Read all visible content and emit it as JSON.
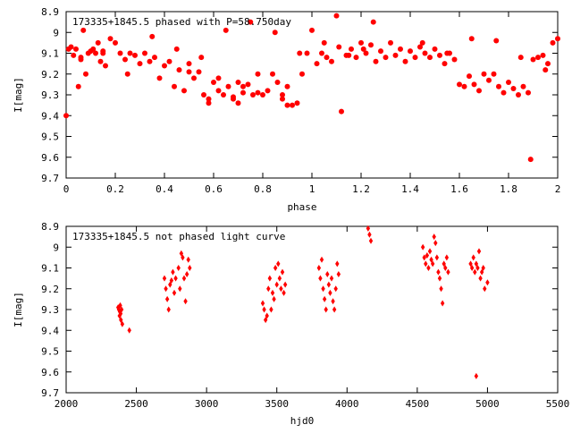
{
  "chart_data": [
    {
      "type": "scatter",
      "title": "173335+1845.5 phased with P=58.750day",
      "xlabel": "phase",
      "ylabel": "I[mag]",
      "xlim": [
        0,
        2
      ],
      "ylim": [
        8.9,
        9.7
      ],
      "y_inverted": true,
      "xticks": [
        "0",
        "0.2",
        "0.4",
        "0.6",
        "0.8",
        "1",
        "1.2",
        "1.4",
        "1.6",
        "1.8",
        "2"
      ],
      "yticks": [
        "8.9",
        "9",
        "9.1",
        "9.2",
        "9.3",
        "9.4",
        "9.5",
        "9.6",
        "9.7"
      ],
      "marker_color": "#ff0000",
      "series": [
        {
          "x": [
            0.0,
            0.01,
            0.02,
            0.03,
            0.04,
            0.05,
            0.06,
            0.07,
            0.08,
            0.09,
            0.1,
            0.11,
            0.12,
            0.13,
            0.14,
            0.15,
            0.16,
            0.18,
            0.2,
            0.22,
            0.24,
            0.26,
            0.28,
            0.3,
            0.32,
            0.34,
            0.36,
            0.38,
            0.4,
            0.42,
            0.44,
            0.46,
            0.48,
            0.5,
            0.52,
            0.54,
            0.56,
            0.58,
            0.6,
            0.62,
            0.64,
            0.66,
            0.68,
            0.7,
            0.72,
            0.74,
            0.76,
            0.78,
            0.8,
            0.82,
            0.84,
            0.86,
            0.88,
            0.9,
            0.92,
            0.94,
            0.96,
            0.98,
            1.0,
            1.02,
            1.04,
            1.06,
            1.08,
            1.1,
            1.12,
            1.14,
            1.16,
            1.18,
            1.2,
            1.22,
            1.24,
            1.26,
            1.28,
            1.3,
            1.32,
            1.34,
            1.36,
            1.38,
            1.4,
            1.42,
            1.44,
            1.46,
            1.48,
            1.5,
            1.52,
            1.54,
            1.56,
            1.58,
            1.6,
            1.62,
            1.64,
            1.66,
            1.68,
            1.7,
            1.72,
            1.74,
            1.76,
            1.78,
            1.8,
            1.82,
            1.84,
            1.86,
            1.88,
            1.89,
            1.9,
            1.92,
            1.94,
            1.96,
            1.98,
            2.0,
            0.06,
            0.15,
            0.35,
            0.45,
            0.55,
            0.65,
            0.75,
            0.85,
            0.95,
            1.05,
            1.11,
            1.15,
            1.21,
            1.25,
            1.45,
            1.55,
            1.65,
            1.75,
            1.85,
            1.95,
            0.25,
            0.5,
            0.7,
            0.9,
            0.68,
            0.78,
            0.88,
            0.58,
            0.62,
            0.72
          ],
          "y": [
            9.4,
            9.08,
            9.07,
            9.11,
            9.08,
            9.26,
            9.12,
            8.99,
            9.2,
            9.1,
            9.09,
            9.08,
            9.1,
            9.05,
            9.14,
            9.09,
            9.16,
            9.03,
            9.05,
            9.1,
            9.13,
            9.1,
            9.11,
            9.15,
            9.1,
            9.14,
            9.12,
            9.22,
            9.16,
            9.14,
            9.26,
            9.18,
            9.28,
            9.15,
            9.22,
            9.19,
            9.3,
            9.32,
            9.24,
            9.28,
            9.3,
            9.26,
            9.32,
            9.34,
            9.29,
            9.25,
            9.3,
            9.2,
            9.3,
            9.28,
            9.2,
            9.24,
            9.32,
            9.35,
            9.35,
            9.34,
            9.2,
            9.1,
            8.99,
            9.15,
            9.1,
            9.12,
            9.14,
            8.92,
            9.38,
            9.11,
            9.08,
            9.12,
            9.05,
            9.1,
            9.06,
            9.14,
            9.09,
            9.12,
            9.05,
            9.11,
            9.08,
            9.14,
            9.09,
            9.12,
            9.07,
            9.1,
            9.12,
            9.08,
            9.11,
            9.15,
            9.1,
            9.13,
            9.25,
            9.26,
            9.21,
            9.25,
            9.28,
            9.2,
            9.23,
            9.2,
            9.26,
            9.29,
            9.24,
            9.27,
            9.3,
            9.26,
            9.29,
            9.61,
            9.13,
            9.12,
            9.11,
            9.15,
            9.05,
            9.03,
            9.13,
            9.1,
            9.02,
            9.08,
            9.12,
            8.99,
            8.95,
            9.0,
            9.1,
            9.05,
            9.07,
            9.11,
            9.08,
            8.95,
            9.05,
            9.1,
            9.03,
            9.04,
            9.12,
            9.18,
            9.2,
            9.19,
            9.24,
            9.26,
            9.31,
            9.29,
            9.3,
            9.34,
            9.22,
            9.26
          ],
          "marker": "filled-circle"
        }
      ]
    },
    {
      "type": "scatter",
      "title": "173335+1845.5 not phased light curve",
      "xlabel": "hjd0",
      "ylabel": "I[mag]",
      "xlim": [
        2000,
        5500
      ],
      "ylim": [
        8.9,
        9.7
      ],
      "y_inverted": true,
      "xticks": [
        "2000",
        "2500",
        "3000",
        "3500",
        "4000",
        "4500",
        "5000",
        "5500"
      ],
      "yticks": [
        "8.9",
        "9",
        "9.1",
        "9.2",
        "9.3",
        "9.4",
        "9.5",
        "9.6",
        "9.7"
      ],
      "marker_color": "#ff0000",
      "series": [
        {
          "x": [
            2370,
            2375,
            2380,
            2382,
            2385,
            2388,
            2390,
            2395,
            2400,
            2450,
            2700,
            2710,
            2720,
            2730,
            2740,
            2750,
            2760,
            2770,
            2780,
            2800,
            2810,
            2820,
            2830,
            2840,
            2850,
            2860,
            2870,
            2880,
            3400,
            3410,
            3420,
            3430,
            3440,
            3450,
            3460,
            3470,
            3480,
            3490,
            3500,
            3510,
            3520,
            3530,
            3540,
            3550,
            3560,
            3800,
            3810,
            3820,
            3830,
            3840,
            3850,
            3860,
            3870,
            3880,
            3890,
            3900,
            3910,
            3920,
            3930,
            3940,
            4150,
            4160,
            4170,
            4540,
            4550,
            4560,
            4570,
            4580,
            4590,
            4600,
            4610,
            4620,
            4630,
            4640,
            4650,
            4660,
            4670,
            4680,
            4690,
            4700,
            4710,
            4720,
            4880,
            4890,
            4900,
            4910,
            4920,
            4930,
            4940,
            4950,
            4960,
            4970,
            4980,
            5000,
            4920
          ],
          "y": [
            9.29,
            9.3,
            9.33,
            9.31,
            9.28,
            9.32,
            9.35,
            9.3,
            9.37,
            9.4,
            9.15,
            9.2,
            9.25,
            9.3,
            9.18,
            9.16,
            9.12,
            9.22,
            9.15,
            9.1,
            9.2,
            9.03,
            9.05,
            9.15,
            9.26,
            9.13,
            9.06,
            9.1,
            9.27,
            9.3,
            9.35,
            9.33,
            9.2,
            9.15,
            9.3,
            9.22,
            9.25,
            9.1,
            9.18,
            9.08,
            9.15,
            9.2,
            9.12,
            9.22,
            9.18,
            9.1,
            9.15,
            9.06,
            9.2,
            9.25,
            9.3,
            9.13,
            9.18,
            9.22,
            9.15,
            9.26,
            9.3,
            9.2,
            9.08,
            9.13,
            8.91,
            8.94,
            8.97,
            9.0,
            9.05,
            9.08,
            9.04,
            9.1,
            9.02,
            9.06,
            9.08,
            8.95,
            8.98,
            9.05,
            9.12,
            9.15,
            9.2,
            9.27,
            9.08,
            9.1,
            9.05,
            9.12,
            9.08,
            9.1,
            9.05,
            9.12,
            9.08,
            9.1,
            9.02,
            9.15,
            9.12,
            9.1,
            9.2,
            9.17,
            9.62
          ],
          "marker": "filled-diamond"
        }
      ]
    }
  ]
}
